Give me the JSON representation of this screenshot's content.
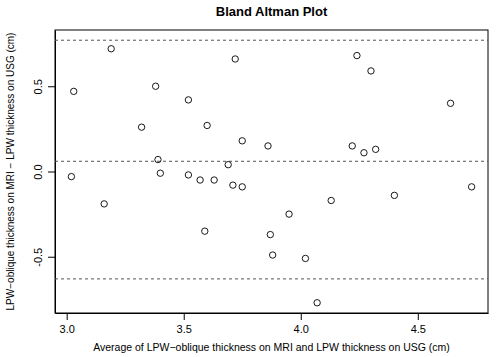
{
  "chart_data": {
    "type": "scatter",
    "title": "Bland Altman Plot",
    "x_label": "Average of LPW−oblique thickness on MRI and LPW thickness on USG (cm)",
    "y_label": "LPW−oblique thickness on MRI − LPW thickness on USG (cm)",
    "x": [
      3.02,
      3.03,
      3.16,
      3.19,
      3.32,
      3.38,
      3.39,
      3.4,
      3.52,
      3.52,
      3.57,
      3.59,
      3.6,
      3.63,
      3.69,
      3.71,
      3.72,
      3.75,
      3.75,
      3.86,
      3.87,
      3.88,
      3.95,
      4.02,
      4.07,
      4.13,
      4.22,
      4.24,
      4.27,
      4.3,
      4.32,
      4.4,
      4.64,
      4.73
    ],
    "values": [
      -0.03,
      0.47,
      -0.19,
      0.72,
      0.26,
      0.5,
      0.07,
      -0.01,
      0.42,
      -0.02,
      -0.05,
      -0.35,
      0.27,
      -0.05,
      0.04,
      -0.08,
      0.66,
      0.18,
      -0.09,
      0.15,
      -0.37,
      -0.49,
      -0.25,
      -0.51,
      -0.77,
      -0.17,
      0.15,
      0.68,
      0.11,
      0.59,
      0.13,
      -0.14,
      0.4,
      -0.09
    ],
    "hlines": [
      0.77,
      0.06,
      -0.63
    ],
    "xlim": [
      2.95,
      4.8
    ],
    "xticks": [
      {
        "value": 3,
        "label": "3.0"
      },
      3.5,
      {
        "value": 4,
        "label": "4.0"
      },
      4.5
    ],
    "ylim": [
      -0.83,
      0.83
    ],
    "yticks": [
      -0.5,
      {
        "value": 0,
        "label": "0.0"
      },
      0.5
    ],
    "marker": "open-circle",
    "color": "#000000"
  }
}
